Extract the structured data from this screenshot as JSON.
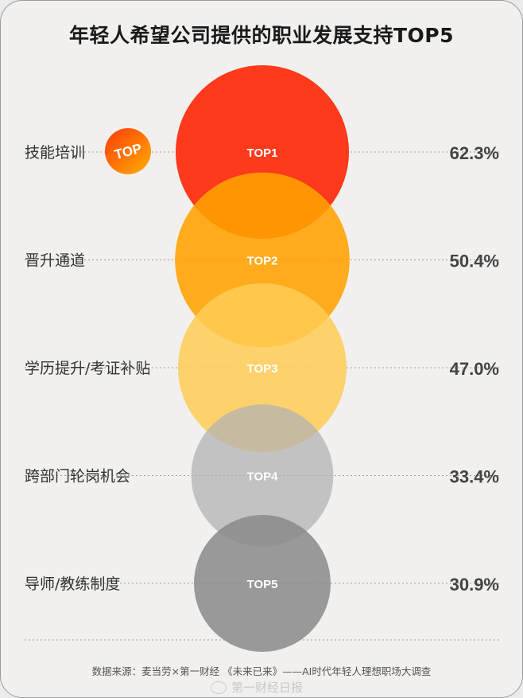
{
  "title": "年轻人希望公司提供的职业发展支持TOP5",
  "badge_text": "TOP",
  "source": "数据来源：麦当劳×第一财经 《未来已来》——AI时代年轻人理想职场大调查",
  "watermark": "第一财经日报",
  "colors": {
    "rank1": "#ff2a0a",
    "rank2": "#ffa200",
    "rank3": "#ffcc55",
    "rank4": "#b3b3b3",
    "rank5": "#8a8a8a",
    "text": "#333333",
    "value_text": "#444444"
  },
  "chart_data": {
    "type": "bubble",
    "title": "年轻人希望公司提供的职业发展支持TOP5",
    "categories": [
      "技能培训",
      "晋升通道",
      "学历提升/考证补贴",
      "跨部门轮岗机会",
      "导师/教练制度"
    ],
    "ranks": [
      "TOP1",
      "TOP2",
      "TOP3",
      "TOP4",
      "TOP5"
    ],
    "values": [
      62.3,
      50.4,
      47.0,
      33.4,
      30.9
    ],
    "value_labels": [
      "62.3%",
      "50.4%",
      "47.0%",
      "33.4%",
      "30.9%"
    ],
    "unit": "%"
  }
}
